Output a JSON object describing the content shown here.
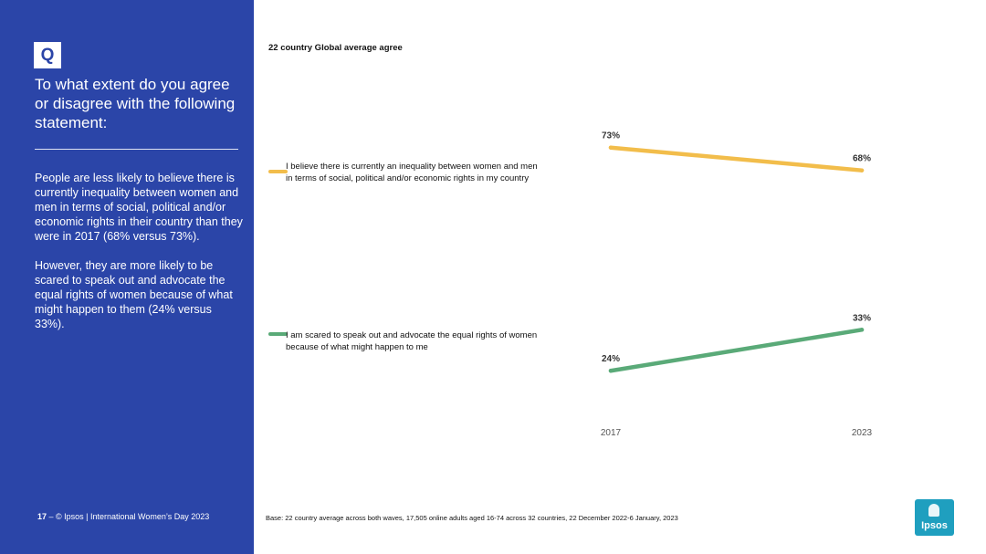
{
  "sidebar": {
    "badge": "Q",
    "question": "To what extent do you agree or disagree with the following statement:",
    "summary_1": "People are less likely to believe there is currently inequality between women and men in terms of social, political and/or economic rights in their country than they were in 2017 (68% versus 73%).",
    "summary_2": "However, they are more likely to be scared to speak out and advocate the equal rights of women because of what might happen to them (24% versus 33%).",
    "page_number": "17",
    "footer_sep": " – ",
    "footer_text": " © Ipsos | International Women’s Day 2023"
  },
  "footnote": "Base: 22 country average across both waves, 17,505 online adults aged 16-74 across 32 countries, 22 December 2022-6 January, 2023",
  "logo": {
    "text": "Ipsos",
    "color": "#1f9fbf"
  },
  "colors": {
    "sidebar": "#2b45a8",
    "series_1": "#f2bd4b",
    "series_2": "#5aaa78"
  },
  "chart_data": {
    "type": "line",
    "title": "22 country Global average agree",
    "x": [
      "2017",
      "2023"
    ],
    "ylim": [
      0,
      100
    ],
    "grid": false,
    "legend_position": "left",
    "series": [
      {
        "name": "I believe there is currently an inequality between women and men in terms of social, political and/or economic rights in my country",
        "values": [
          73,
          68
        ],
        "labels": [
          "73%",
          "68%"
        ],
        "color": "#f2bd4b"
      },
      {
        "name": "I am scared to speak out and advocate the equal rights of women because of what might happen to me",
        "values": [
          24,
          33
        ],
        "labels": [
          "24%",
          "33%"
        ],
        "color": "#5aaa78"
      }
    ]
  }
}
